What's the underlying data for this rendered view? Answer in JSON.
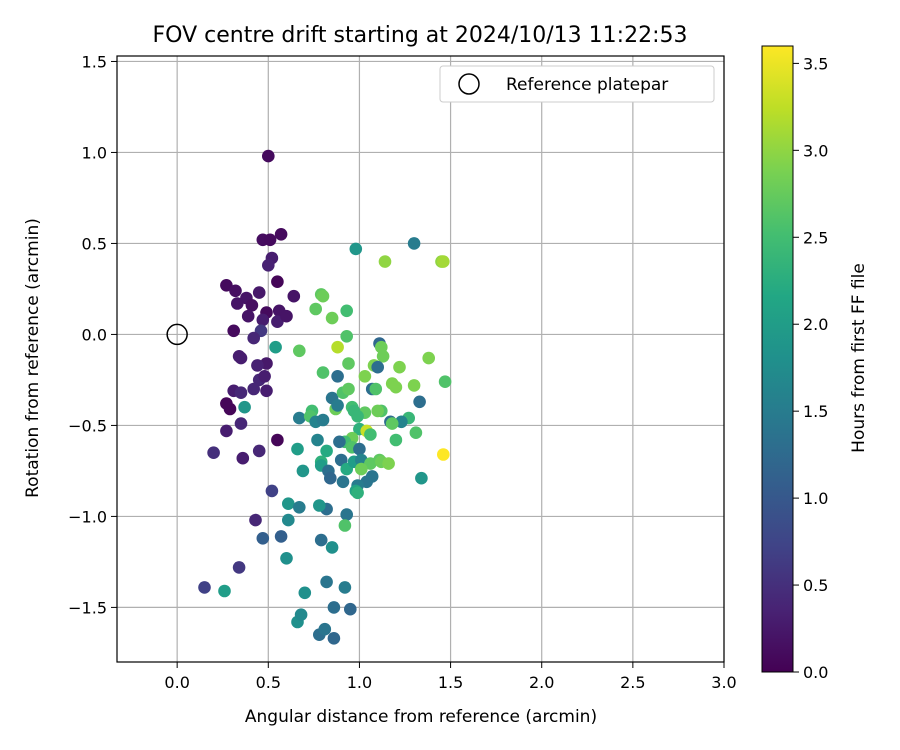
{
  "chart_data": {
    "type": "scatter",
    "title": "FOV centre drift starting at 2024/10/13 11:22:53",
    "xlabel": "Angular distance from reference (arcmin)",
    "ylabel": "Rotation from reference (arcmin)",
    "xlim": [
      -0.33,
      3.0
    ],
    "ylim": [
      -1.8,
      1.53
    ],
    "xticks": [
      0.0,
      0.5,
      1.0,
      1.5,
      2.0,
      2.5,
      3.0
    ],
    "xtick_labels": [
      "0.0",
      "0.5",
      "1.0",
      "1.5",
      "2.0",
      "2.5",
      "3.0"
    ],
    "yticks": [
      -1.5,
      -1.0,
      -0.5,
      0.0,
      0.5,
      1.0,
      1.5
    ],
    "ytick_labels": [
      "−1.5",
      "−1.0",
      "−0.5",
      "0.0",
      "0.5",
      "1.0",
      "1.5"
    ],
    "grid": true,
    "legend": {
      "placement": "top-right",
      "entries": [
        "Reference platepar"
      ]
    },
    "reference_point": {
      "x": 0.0,
      "y": 0.0
    },
    "colorbar": {
      "label": "Hours from first FF file",
      "range": [
        0.0,
        3.6
      ],
      "ticks": [
        0.0,
        0.5,
        1.0,
        1.5,
        2.0,
        2.5,
        3.0,
        3.5
      ],
      "tick_labels": [
        "0.0",
        "0.5",
        "1.0",
        "1.5",
        "2.0",
        "2.5",
        "3.0",
        "3.5"
      ],
      "colormap": "viridis"
    },
    "points": [
      {
        "x": 0.5,
        "y": 0.98,
        "c": 0.1
      },
      {
        "x": 0.57,
        "y": 0.55,
        "c": 0.1
      },
      {
        "x": 0.47,
        "y": 0.52,
        "c": 0.12
      },
      {
        "x": 0.51,
        "y": 0.52,
        "c": 0.1
      },
      {
        "x": 0.52,
        "y": 0.42,
        "c": 0.3
      },
      {
        "x": 0.5,
        "y": 0.38,
        "c": 0.35
      },
      {
        "x": 0.55,
        "y": 0.29,
        "c": 0.05
      },
      {
        "x": 0.27,
        "y": 0.27,
        "c": 0.1
      },
      {
        "x": 0.32,
        "y": 0.24,
        "c": 0.15
      },
      {
        "x": 0.45,
        "y": 0.23,
        "c": 0.25
      },
      {
        "x": 0.38,
        "y": 0.2,
        "c": 0.2
      },
      {
        "x": 0.33,
        "y": 0.17,
        "c": 0.2
      },
      {
        "x": 0.41,
        "y": 0.16,
        "c": 0.15
      },
      {
        "x": 0.64,
        "y": 0.21,
        "c": 0.2
      },
      {
        "x": 0.49,
        "y": 0.12,
        "c": 0.1
      },
      {
        "x": 0.56,
        "y": 0.13,
        "c": 0.2
      },
      {
        "x": 0.39,
        "y": 0.1,
        "c": 0.2
      },
      {
        "x": 0.47,
        "y": 0.08,
        "c": 0.3
      },
      {
        "x": 0.55,
        "y": 0.07,
        "c": 0.3
      },
      {
        "x": 0.6,
        "y": 0.1,
        "c": 0.2
      },
      {
        "x": 0.31,
        "y": 0.02,
        "c": 0.1
      },
      {
        "x": 0.46,
        "y": 0.02,
        "c": 0.6
      },
      {
        "x": 0.42,
        "y": -0.02,
        "c": 0.4
      },
      {
        "x": 0.35,
        "y": -0.13,
        "c": 0.3
      },
      {
        "x": 0.34,
        "y": -0.12,
        "c": 0.3
      },
      {
        "x": 0.49,
        "y": -0.16,
        "c": 0.25
      },
      {
        "x": 0.44,
        "y": -0.17,
        "c": 0.35
      },
      {
        "x": 0.54,
        "y": -0.07,
        "c": 2.0
      },
      {
        "x": 0.45,
        "y": -0.25,
        "c": 0.4
      },
      {
        "x": 0.48,
        "y": -0.23,
        "c": 0.3
      },
      {
        "x": 0.31,
        "y": -0.31,
        "c": 0.3
      },
      {
        "x": 0.35,
        "y": -0.32,
        "c": 0.4
      },
      {
        "x": 0.42,
        "y": -0.3,
        "c": 0.4
      },
      {
        "x": 0.49,
        "y": -0.31,
        "c": 0.3
      },
      {
        "x": 0.27,
        "y": -0.38,
        "c": 0.05
      },
      {
        "x": 0.29,
        "y": -0.41,
        "c": 0.05
      },
      {
        "x": 0.37,
        "y": -0.4,
        "c": 1.9
      },
      {
        "x": 0.35,
        "y": -0.49,
        "c": 0.4
      },
      {
        "x": 0.27,
        "y": -0.53,
        "c": 0.3
      },
      {
        "x": 0.55,
        "y": -0.58,
        "c": 0.05
      },
      {
        "x": 0.45,
        "y": -0.64,
        "c": 0.4
      },
      {
        "x": 0.2,
        "y": -0.65,
        "c": 0.5
      },
      {
        "x": 0.36,
        "y": -0.68,
        "c": 0.3
      },
      {
        "x": 0.52,
        "y": -0.86,
        "c": 0.7
      },
      {
        "x": 0.43,
        "y": -1.02,
        "c": 0.4
      },
      {
        "x": 0.47,
        "y": -1.12,
        "c": 1.1
      },
      {
        "x": 0.57,
        "y": -1.11,
        "c": 1.1
      },
      {
        "x": 0.34,
        "y": -1.28,
        "c": 0.6
      },
      {
        "x": 0.15,
        "y": -1.39,
        "c": 0.7
      },
      {
        "x": 0.26,
        "y": -1.41,
        "c": 2.0
      },
      {
        "x": 0.6,
        "y": -1.23,
        "c": 1.8
      },
      {
        "x": 0.61,
        "y": -1.02,
        "c": 1.7
      },
      {
        "x": 0.61,
        "y": -0.93,
        "c": 1.9
      },
      {
        "x": 0.67,
        "y": -0.95,
        "c": 1.5
      },
      {
        "x": 0.66,
        "y": -0.63,
        "c": 2.0
      },
      {
        "x": 0.67,
        "y": -0.46,
        "c": 1.5
      },
      {
        "x": 0.67,
        "y": -0.09,
        "c": 2.7
      },
      {
        "x": 0.69,
        "y": -0.75,
        "c": 1.9
      },
      {
        "x": 0.7,
        "y": -1.42,
        "c": 1.8
      },
      {
        "x": 0.66,
        "y": -1.58,
        "c": 1.8
      },
      {
        "x": 0.68,
        "y": -1.54,
        "c": 1.7
      },
      {
        "x": 0.78,
        "y": -1.65,
        "c": 1.3
      },
      {
        "x": 0.81,
        "y": -1.62,
        "c": 1.4
      },
      {
        "x": 0.86,
        "y": -1.67,
        "c": 1.2
      },
      {
        "x": 0.86,
        "y": -1.5,
        "c": 1.3
      },
      {
        "x": 0.95,
        "y": -1.51,
        "c": 1.2
      },
      {
        "x": 0.82,
        "y": -1.36,
        "c": 1.4
      },
      {
        "x": 0.92,
        "y": -1.39,
        "c": 1.5
      },
      {
        "x": 0.79,
        "y": -1.13,
        "c": 1.3
      },
      {
        "x": 0.85,
        "y": -1.17,
        "c": 1.8
      },
      {
        "x": 0.82,
        "y": -0.96,
        "c": 1.3
      },
      {
        "x": 0.78,
        "y": -0.94,
        "c": 1.9
      },
      {
        "x": 0.93,
        "y": -0.99,
        "c": 1.4
      },
      {
        "x": 0.92,
        "y": -1.05,
        "c": 2.6
      },
      {
        "x": 0.77,
        "y": -0.58,
        "c": 1.6
      },
      {
        "x": 0.82,
        "y": -0.64,
        "c": 2.2
      },
      {
        "x": 0.79,
        "y": -0.7,
        "c": 2.3
      },
      {
        "x": 0.79,
        "y": -0.72,
        "c": 2.0
      },
      {
        "x": 0.83,
        "y": -0.75,
        "c": 1.3
      },
      {
        "x": 0.84,
        "y": -0.79,
        "c": 1.2
      },
      {
        "x": 0.91,
        "y": -0.81,
        "c": 1.4
      },
      {
        "x": 0.74,
        "y": -0.42,
        "c": 2.5
      },
      {
        "x": 0.73,
        "y": -0.45,
        "c": 2.6
      },
      {
        "x": 0.76,
        "y": -0.48,
        "c": 1.6
      },
      {
        "x": 0.8,
        "y": -0.47,
        "c": 1.5
      },
      {
        "x": 0.85,
        "y": -0.35,
        "c": 1.4
      },
      {
        "x": 0.87,
        "y": -0.41,
        "c": 2.8
      },
      {
        "x": 0.88,
        "y": -0.39,
        "c": 1.5
      },
      {
        "x": 0.91,
        "y": -0.32,
        "c": 2.6
      },
      {
        "x": 0.94,
        "y": -0.3,
        "c": 2.7
      },
      {
        "x": 0.88,
        "y": -0.23,
        "c": 1.3
      },
      {
        "x": 0.8,
        "y": -0.21,
        "c": 2.6
      },
      {
        "x": 0.94,
        "y": -0.16,
        "c": 2.7
      },
      {
        "x": 0.88,
        "y": -0.07,
        "c": 3.2
      },
      {
        "x": 0.93,
        "y": -0.01,
        "c": 2.6
      },
      {
        "x": 0.76,
        "y": 0.14,
        "c": 2.7
      },
      {
        "x": 0.79,
        "y": 0.22,
        "c": 2.7
      },
      {
        "x": 0.8,
        "y": 0.21,
        "c": 2.8
      },
      {
        "x": 0.85,
        "y": 0.09,
        "c": 2.8
      },
      {
        "x": 0.93,
        "y": 0.13,
        "c": 2.5
      },
      {
        "x": 0.98,
        "y": 0.47,
        "c": 1.9
      },
      {
        "x": 1.14,
        "y": 0.4,
        "c": 3.0
      },
      {
        "x": 1.3,
        "y": 0.5,
        "c": 1.5
      },
      {
        "x": 1.45,
        "y": 0.4,
        "c": 3.0
      },
      {
        "x": 1.46,
        "y": 0.4,
        "c": 3.1
      },
      {
        "x": 1.11,
        "y": -0.05,
        "c": 1.2
      },
      {
        "x": 1.12,
        "y": -0.07,
        "c": 2.8
      },
      {
        "x": 1.13,
        "y": -0.12,
        "c": 2.8
      },
      {
        "x": 1.08,
        "y": -0.17,
        "c": 2.9
      },
      {
        "x": 1.03,
        "y": -0.23,
        "c": 2.9
      },
      {
        "x": 1.1,
        "y": -0.18,
        "c": 1.3
      },
      {
        "x": 1.07,
        "y": -0.3,
        "c": 1.3
      },
      {
        "x": 1.09,
        "y": -0.3,
        "c": 2.6
      },
      {
        "x": 1.18,
        "y": -0.27,
        "c": 2.9
      },
      {
        "x": 1.22,
        "y": -0.18,
        "c": 2.9
      },
      {
        "x": 1.2,
        "y": -0.29,
        "c": 2.9
      },
      {
        "x": 1.3,
        "y": -0.28,
        "c": 2.9
      },
      {
        "x": 1.38,
        "y": -0.13,
        "c": 2.9
      },
      {
        "x": 1.47,
        "y": -0.26,
        "c": 2.6
      },
      {
        "x": 1.33,
        "y": -0.37,
        "c": 1.3
      },
      {
        "x": 1.27,
        "y": -0.46,
        "c": 2.4
      },
      {
        "x": 1.23,
        "y": -0.48,
        "c": 1.6
      },
      {
        "x": 1.17,
        "y": -0.48,
        "c": 1.3
      },
      {
        "x": 1.18,
        "y": -0.49,
        "c": 2.7
      },
      {
        "x": 1.12,
        "y": -0.42,
        "c": 2.6
      },
      {
        "x": 1.1,
        "y": -0.42,
        "c": 2.8
      },
      {
        "x": 1.03,
        "y": -0.43,
        "c": 2.7
      },
      {
        "x": 0.96,
        "y": -0.4,
        "c": 2.5
      },
      {
        "x": 0.97,
        "y": -0.42,
        "c": 2.4
      },
      {
        "x": 0.99,
        "y": -0.45,
        "c": 2.4
      },
      {
        "x": 1.0,
        "y": -0.52,
        "c": 2.3
      },
      {
        "x": 1.04,
        "y": -0.53,
        "c": 3.3
      },
      {
        "x": 1.06,
        "y": -0.55,
        "c": 2.5
      },
      {
        "x": 0.96,
        "y": -0.57,
        "c": 2.8
      },
      {
        "x": 0.92,
        "y": -0.59,
        "c": 2.5
      },
      {
        "x": 0.96,
        "y": -0.62,
        "c": 2.6
      },
      {
        "x": 1.0,
        "y": -0.63,
        "c": 1.3
      },
      {
        "x": 0.89,
        "y": -0.59,
        "c": 1.3
      },
      {
        "x": 0.9,
        "y": -0.69,
        "c": 1.3
      },
      {
        "x": 0.93,
        "y": -0.74,
        "c": 2.2
      },
      {
        "x": 0.97,
        "y": -0.7,
        "c": 2.0
      },
      {
        "x": 1.01,
        "y": -0.69,
        "c": 1.6
      },
      {
        "x": 1.06,
        "y": -0.71,
        "c": 2.7
      },
      {
        "x": 1.11,
        "y": -0.69,
        "c": 2.7
      },
      {
        "x": 1.12,
        "y": -0.7,
        "c": 2.8
      },
      {
        "x": 1.16,
        "y": -0.71,
        "c": 2.9
      },
      {
        "x": 1.01,
        "y": -0.74,
        "c": 2.8
      },
      {
        "x": 1.07,
        "y": -0.78,
        "c": 1.4
      },
      {
        "x": 1.04,
        "y": -0.81,
        "c": 1.4
      },
      {
        "x": 0.99,
        "y": -0.83,
        "c": 1.5
      },
      {
        "x": 0.98,
        "y": -0.86,
        "c": 2.1
      },
      {
        "x": 0.99,
        "y": -0.87,
        "c": 2.3
      },
      {
        "x": 1.2,
        "y": -0.58,
        "c": 2.5
      },
      {
        "x": 1.31,
        "y": -0.54,
        "c": 2.6
      },
      {
        "x": 1.34,
        "y": -0.79,
        "c": 1.9
      },
      {
        "x": 1.46,
        "y": -0.66,
        "c": 3.6
      }
    ]
  }
}
